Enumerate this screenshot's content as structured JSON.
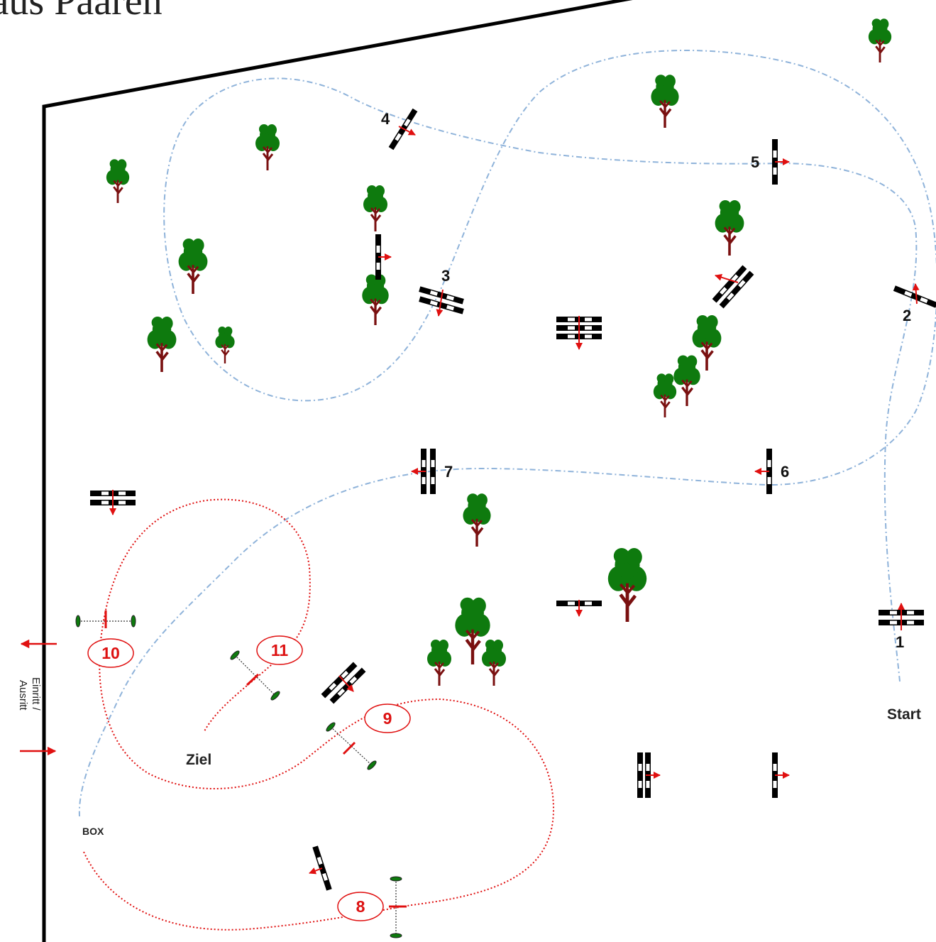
{
  "title": "laus Paaren",
  "labels": {
    "start": "Start",
    "ziel": "Ziel",
    "box": "BOX",
    "entrance_line1": "Einritt /",
    "entrance_line2": "Ausritt"
  },
  "obstacles": {
    "o1": "1",
    "o2": "2",
    "o3": "3",
    "o4": "4",
    "o5": "5",
    "o6": "6",
    "o7": "7",
    "o8": "8",
    "o9": "9",
    "o10": "10",
    "o11": "11"
  },
  "colors": {
    "boundary": "#000000",
    "path_blue": "#8fb3da",
    "path_red": "#e01010",
    "arrow": "#e01010",
    "tree_leaves": "#0e7a0e",
    "tree_trunk": "#7a1010"
  }
}
